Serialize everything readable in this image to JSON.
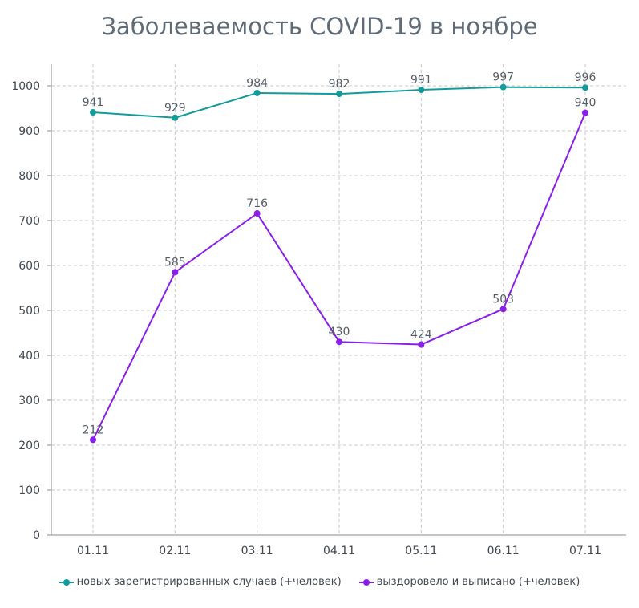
{
  "chart_data": {
    "type": "line",
    "title": "Заболеваемость COVID-19 в ноябре",
    "categories": [
      "01.11",
      "02.11",
      "03.11",
      "04.11",
      "05.11",
      "06.11",
      "07.11"
    ],
    "ylim": [
      0,
      1000
    ],
    "yticks": [
      "0",
      "100",
      "200",
      "300",
      "400",
      "500",
      "600",
      "700",
      "800",
      "900",
      "1000"
    ],
    "grid": true,
    "legend_position": "bottom",
    "series": [
      {
        "name": "новых зарегистрированных случаев (+человек)",
        "values": [
          941,
          929,
          984,
          982,
          991,
          997,
          996
        ],
        "labels": [
          "941",
          "929",
          "984",
          "982",
          "991",
          "997",
          "996"
        ],
        "color": "#159a9c"
      },
      {
        "name": "выздоровело и выписано (+человек)",
        "values": [
          212,
          585,
          716,
          430,
          424,
          503,
          940
        ],
        "labels": [
          "212",
          "585",
          "716",
          "430",
          "424",
          "503",
          "940"
        ],
        "color": "#8a1fe8"
      }
    ]
  }
}
